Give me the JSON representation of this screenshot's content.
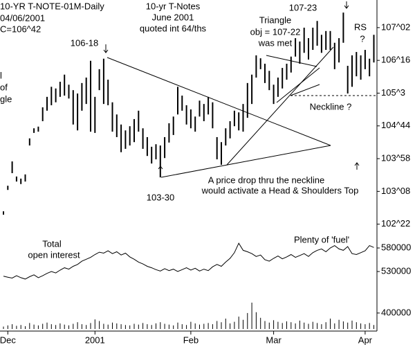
{
  "chart_data": [
    {
      "type": "ohlc",
      "title": "10-YR T-NOTE-01M-Daily",
      "subtitle": [
        "04/06/2001",
        "C=106^42"
      ],
      "annotations": [
        "10-yr T-Notes",
        "June 2001",
        "quoted int 64/ths",
        "Triangle",
        "obj = 107-22",
        "was met",
        "107-23",
        "RS",
        "?",
        "106-18",
        "Neckline ?",
        "103-30",
        "A price drop thru the neckline",
        "would activate a Head & Shoulders Top",
        "l",
        "of",
        "gle"
      ],
      "color": "#000000",
      "high": [
        102.65,
        103.26,
        103.84,
        103.48,
        103.43,
        103.53,
        104.39,
        104.63,
        104.67,
        105.13,
        105.38,
        105.62,
        105.58,
        105.74,
        105.91,
        105.67,
        105.54,
        105.46,
        105.71,
        105.84,
        106.24,
        105.38,
        106.04,
        106.29,
        105.79,
        105.25,
        104.96,
        104.72,
        104.58,
        104.68,
        104.85,
        105.05,
        104.63,
        104.42,
        104.19,
        104.25,
        104.22,
        104.42,
        104.75,
        104.91,
        105.62,
        105.41,
        105.18,
        105.08,
        104.91,
        105.29,
        105.21,
        105.38,
        105.25,
        104.42,
        104.3,
        104.63,
        104.8,
        105.05,
        105.01,
        105.21,
        105.71,
        105.91,
        106.37,
        106.3,
        106.17,
        106.0,
        105.67,
        105.84,
        106.07,
        106.17,
        106.34,
        106.78,
        106.7,
        107.03,
        106.78,
        107.03,
        107.19,
        106.86,
        106.95,
        106.95,
        106.67,
        106.78,
        107.39,
        106.12,
        106.37,
        106.45,
        106.37,
        106.5,
        106.29,
        106.86
      ],
      "low": [
        102.57,
        103.16,
        103.56,
        103.36,
        103.3,
        103.36,
        104.22,
        104.52,
        104.55,
        104.8,
        105.05,
        105.18,
        105.25,
        105.38,
        105.41,
        105.34,
        104.72,
        104.58,
        105.05,
        105.21,
        104.55,
        104.52,
        105.54,
        105.21,
        105.18,
        104.55,
        104.42,
        104.06,
        104.14,
        104.22,
        104.3,
        104.55,
        104.14,
        103.97,
        103.79,
        103.89,
        103.46,
        103.92,
        104.29,
        104.47,
        104.96,
        105.05,
        104.72,
        104.63,
        104.55,
        104.91,
        104.8,
        104.96,
        104.63,
        103.89,
        103.76,
        104.22,
        104.39,
        104.68,
        104.58,
        104.55,
        104.88,
        105.21,
        105.84,
        106.04,
        105.71,
        105.54,
        105.21,
        105.38,
        105.58,
        105.79,
        105.96,
        106.34,
        106.17,
        106.43,
        106.27,
        106.5,
        106.6,
        106.43,
        106.5,
        106.5,
        106.04,
        106.2,
        106.67,
        105.46,
        105.62,
        105.87,
        105.79,
        106.04,
        105.87,
        106.2
      ],
      "ylim": [
        102.156,
        107.69
      ],
      "yticks": [
        {
          "value": 107.03125,
          "label": "107^02"
        },
        {
          "value": 106.25,
          "label": "106^16"
        },
        {
          "value": 105.46875,
          "label": "105^3"
        },
        {
          "value": 104.6875,
          "label": "104^44"
        },
        {
          "value": 103.90625,
          "label": "103^58"
        },
        {
          "value": 103.125,
          "label": "103^08"
        },
        {
          "value": 102.34375,
          "label": "102^22"
        }
      ]
    },
    {
      "type": "line",
      "title": [
        "Total",
        "open interest"
      ],
      "annotation": "Plenty of 'fuel'",
      "color": "#000000",
      "values": [
        520000,
        518000,
        516000,
        521000,
        517000,
        514000,
        519000,
        523000,
        517000,
        521000,
        526000,
        530000,
        527000,
        533000,
        538000,
        535000,
        541000,
        545000,
        552000,
        556000,
        560000,
        566000,
        571000,
        569000,
        574000,
        568000,
        572000,
        565000,
        569000,
        561000,
        556000,
        550000,
        546000,
        541000,
        538000,
        534000,
        531000,
        536000,
        532000,
        535000,
        530000,
        534000,
        538000,
        533000,
        537000,
        531000,
        535000,
        532000,
        540000,
        545000,
        541000,
        550000,
        558000,
        570000,
        590000,
        575000,
        572000,
        568000,
        562000,
        565000,
        555000,
        552000,
        558000,
        563000,
        557000,
        561000,
        566000,
        560000,
        564000,
        568000,
        562000,
        570000,
        575000,
        578000,
        572000,
        580000,
        585000,
        578000,
        575000,
        583000,
        568000,
        566000,
        570000,
        574000,
        585000,
        581000
      ],
      "ylim": [
        481500,
        606500
      ],
      "yticks": [
        580000,
        530000
      ]
    },
    {
      "type": "bar",
      "color": "#000000",
      "categories": [
        null,
        "Dec",
        null,
        null,
        null,
        null,
        null,
        null,
        null,
        null,
        null,
        null,
        null,
        null,
        null,
        null,
        null,
        null,
        null,
        null,
        null,
        "2001",
        null,
        null,
        null,
        null,
        null,
        null,
        null,
        null,
        null,
        null,
        null,
        null,
        null,
        null,
        null,
        null,
        null,
        null,
        null,
        null,
        null,
        "Feb",
        null,
        null,
        null,
        null,
        null,
        null,
        null,
        null,
        null,
        null,
        null,
        null,
        null,
        null,
        null,
        null,
        null,
        null,
        "Mar",
        null,
        null,
        null,
        null,
        null,
        null,
        null,
        null,
        null,
        null,
        null,
        null,
        null,
        null,
        null,
        null,
        null,
        null,
        null,
        null,
        "Apr",
        null,
        null
      ],
      "values": [
        60000,
        90000,
        120000,
        80000,
        100000,
        70000,
        150000,
        110000,
        90000,
        130000,
        160000,
        120000,
        100000,
        140000,
        110000,
        90000,
        130000,
        170000,
        120000,
        100000,
        150000,
        240000,
        200000,
        130000,
        110000,
        160000,
        140000,
        120000,
        100000,
        90000,
        130000,
        110000,
        150000,
        120000,
        100000,
        140000,
        170000,
        130000,
        110000,
        90000,
        160000,
        120000,
        100000,
        180000,
        140000,
        110000,
        130000,
        150000,
        120000,
        200000,
        170000,
        260000,
        140000,
        180000,
        310000,
        230000,
        400000,
        660000,
        420000,
        280000,
        200000,
        160000,
        220000,
        180000,
        150000,
        190000,
        170000,
        140000,
        210000,
        160000,
        130000,
        180000,
        150000,
        120000,
        170000,
        260000,
        140000,
        230000,
        190000,
        160000,
        210000,
        170000,
        140000,
        120000,
        150000,
        100000
      ],
      "ylim": [
        0,
        780000
      ],
      "yticks": [
        400000
      ]
    }
  ]
}
